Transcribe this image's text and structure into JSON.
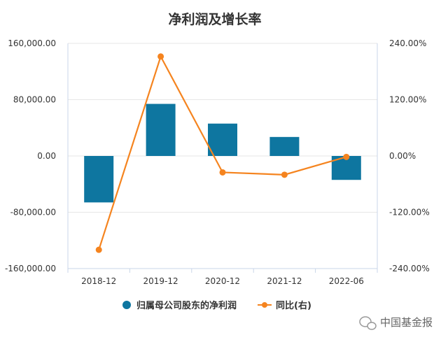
{
  "chart_data": {
    "type": "bar+line",
    "title": "净利润及增长率",
    "categories": [
      "2018-12",
      "2019-12",
      "2020-12",
      "2021-12",
      "2022-06"
    ],
    "series": [
      {
        "name": "归属母公司股东的净利润",
        "type": "bar",
        "axis": "left",
        "values": [
          -66000,
          74000,
          46000,
          27000,
          -34000
        ]
      },
      {
        "name": "同比(右)",
        "type": "line",
        "axis": "right",
        "values": [
          -2.0,
          2.12,
          -0.35,
          -0.4,
          -0.02
        ]
      }
    ],
    "y_left": {
      "min": -160000,
      "max": 160000,
      "ticks": [
        160000,
        80000,
        0,
        -80000,
        -160000
      ],
      "tick_labels": [
        "160,000.00",
        "80,000.00",
        "0.00",
        "-80,000.00",
        "-160,000.00"
      ]
    },
    "y_right": {
      "min": -2.4,
      "max": 2.4,
      "ticks": [
        2.4,
        1.2,
        0,
        -1.2,
        -2.4
      ],
      "tick_labels": [
        "240.00%",
        "120.00%",
        "0.00%",
        "-120.00%",
        "-240.00%"
      ]
    },
    "grid": true,
    "legend": "bottom-center",
    "colors": {
      "bar": "#0e76a0",
      "line": "#f5841f",
      "grid": "#e6e6e6",
      "axis": "#c9d6e8"
    }
  },
  "watermark": {
    "text": "中国基金报",
    "icon": "wechat-icon"
  }
}
